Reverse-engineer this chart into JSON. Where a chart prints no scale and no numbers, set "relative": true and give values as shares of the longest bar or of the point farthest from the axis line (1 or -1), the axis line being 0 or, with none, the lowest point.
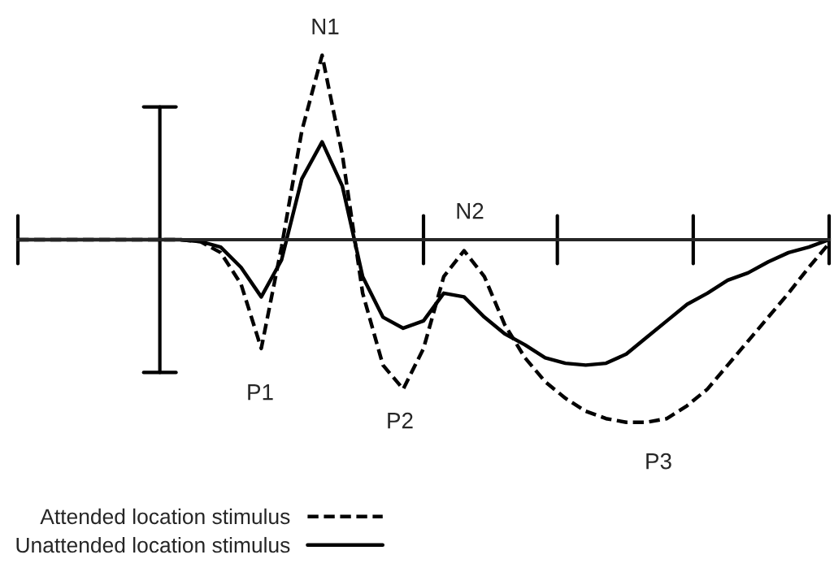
{
  "chart_data": {
    "type": "line",
    "relative": true,
    "legend": "bottom left",
    "categories": [
      null,
      null,
      null,
      null,
      null,
      null,
      null,
      null,
      null,
      null,
      null,
      null,
      null,
      null,
      null,
      null,
      null,
      null,
      null,
      null,
      null,
      null,
      null,
      null,
      null,
      null,
      null,
      null,
      null,
      null,
      null,
      null,
      null,
      null,
      null,
      null,
      null,
      null,
      null,
      null,
      null
    ],
    "series": [
      {
        "name": "Attended location stimulus",
        "color": "#000000",
        "line_style": "dashed",
        "values": [
          0,
          0,
          0,
          0,
          0,
          0,
          0,
          0,
          0,
          -0.01,
          -0.07,
          -0.24,
          -0.59,
          -0.04,
          0.59,
          1.0,
          0.46,
          -0.29,
          -0.68,
          -0.81,
          -0.59,
          -0.2,
          -0.06,
          -0.2,
          -0.46,
          -0.64,
          -0.77,
          -0.86,
          -0.93,
          -0.97,
          -0.99,
          -0.99,
          -0.97,
          -0.9,
          -0.81,
          -0.68,
          -0.55,
          -0.42,
          -0.29,
          -0.15,
          -0.02
        ]
      },
      {
        "name": "Unattended location stimulus",
        "color": "#000000",
        "line_style": "solid",
        "values": [
          0,
          0,
          0,
          0,
          0,
          0,
          0,
          0,
          0,
          -0.01,
          -0.04,
          -0.15,
          -0.31,
          -0.11,
          0.33,
          0.53,
          0.29,
          -0.2,
          -0.42,
          -0.48,
          -0.44,
          -0.29,
          -0.31,
          -0.42,
          -0.51,
          -0.57,
          -0.64,
          -0.67,
          -0.68,
          -0.67,
          -0.62,
          -0.53,
          -0.44,
          -0.35,
          -0.29,
          -0.22,
          -0.18,
          -0.12,
          -0.07,
          -0.04,
          0
        ]
      }
    ],
    "annotations": [
      "N1",
      "P1",
      "N2",
      "P2",
      "P3"
    ]
  }
}
